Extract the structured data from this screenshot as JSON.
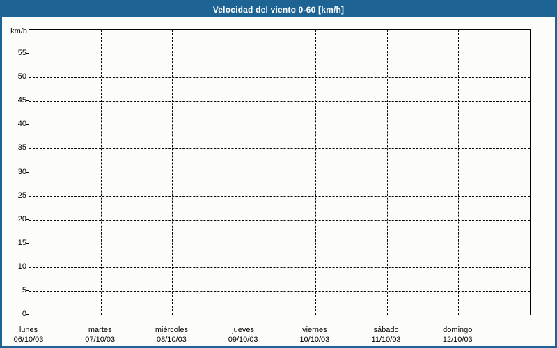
{
  "window": {
    "title": "Velocidad del viento 0-60 [km/h]"
  },
  "colors": {
    "titlebar_bg": "#1d6494",
    "window_border": "#1d6494",
    "background": "#fcfdfa",
    "title_text": "#ffffff",
    "grid": "#000000",
    "axis_text": "#000000"
  },
  "chart_data": {
    "type": "line",
    "title": "Velocidad del viento 0-60 [km/h]",
    "xlabel": "",
    "ylabel": "km/h",
    "ylim": [
      0,
      60
    ],
    "yticks": [
      0,
      5,
      10,
      15,
      20,
      25,
      30,
      35,
      40,
      45,
      50,
      55
    ],
    "grid": "dashed",
    "legend": "none",
    "x_intervals": 7,
    "x_categories": [
      {
        "day": "lunes",
        "date": "06/10/03"
      },
      {
        "day": "martes",
        "date": "07/10/03"
      },
      {
        "day": "miércoles",
        "date": "08/10/03"
      },
      {
        "day": "jueves",
        "date": "09/10/03"
      },
      {
        "day": "viernes",
        "date": "10/10/03"
      },
      {
        "day": "sábado",
        "date": "11/10/03"
      },
      {
        "day": "domingo",
        "date": "12/10/03"
      }
    ],
    "series": []
  }
}
